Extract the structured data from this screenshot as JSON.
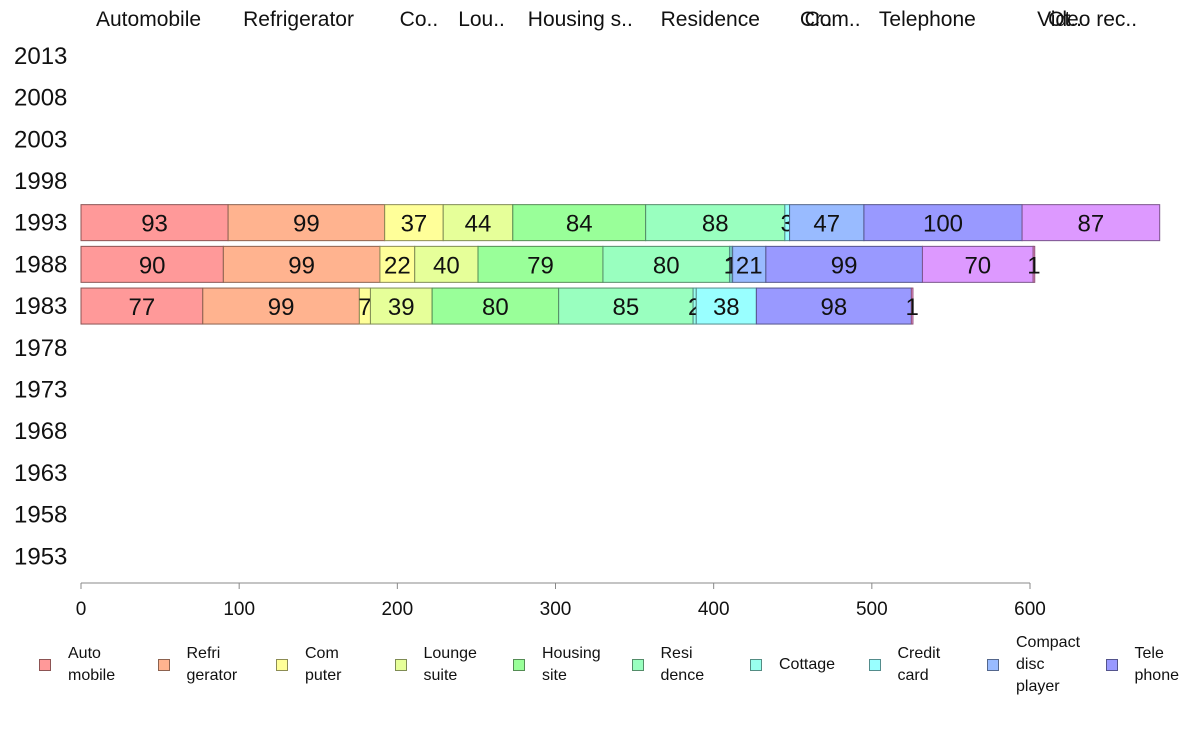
{
  "chart_data": {
    "type": "bar",
    "orientation": "horizontal",
    "stacked": true,
    "years": [
      "2013",
      "2008",
      "2003",
      "1998",
      "1993",
      "1988",
      "1983",
      "1978",
      "1973",
      "1968",
      "1963",
      "1958",
      "1953"
    ],
    "xlim": [
      0,
      600
    ],
    "xticks": [
      "0",
      "100",
      "200",
      "300",
      "400",
      "500",
      "600"
    ],
    "grid": false,
    "legend_position": "bottom",
    "top_labels": [
      {
        "text": "Automobile",
        "series_index": 0
      },
      {
        "text": "Refrigerator",
        "series_index": 1
      },
      {
        "text": "Co..",
        "series_index": 2
      },
      {
        "text": "Lou..",
        "series_index": 3
      },
      {
        "text": "Housing s..",
        "series_index": 4
      },
      {
        "text": "Residence",
        "series_index": 5
      },
      {
        "text": "Cr..",
        "series_index": 7
      },
      {
        "text": "Com..",
        "series_index": 8
      },
      {
        "text": "Telephone",
        "series_index": 9
      },
      {
        "text": "Video rec..",
        "series_index": 10
      },
      {
        "text": "Ot..",
        "series_index": 11
      }
    ],
    "series": [
      {
        "name": "Automobile",
        "legend": "Auto\nmobile",
        "color": "#ff9999",
        "values": {
          "1993": 93,
          "1988": 90,
          "1983": 77
        }
      },
      {
        "name": "Refrigerator",
        "legend": "Refri\ngerator",
        "color": "#ffb38f",
        "values": {
          "1993": 99,
          "1988": 99,
          "1983": 99
        }
      },
      {
        "name": "Computer",
        "legend": "Com\nputer",
        "color": "#ffff99",
        "values": {
          "1993": 37,
          "1988": 22,
          "1983": 7
        }
      },
      {
        "name": "Lounge suite",
        "legend": "Lounge\nsuite",
        "color": "#e6ff99",
        "values": {
          "1993": 44,
          "1988": 40,
          "1983": 39
        }
      },
      {
        "name": "Housing site",
        "legend": "Housing\nsite",
        "color": "#99ff99",
        "values": {
          "1993": 84,
          "1988": 79,
          "1983": 80
        }
      },
      {
        "name": "Residence",
        "legend": "Resi\ndence",
        "color": "#99ffbf",
        "values": {
          "1993": 88,
          "1988": 80,
          "1983": 85
        }
      },
      {
        "name": "Cottage",
        "legend": "Cottage",
        "color": "#99ffee",
        "values": {
          "1993": 0,
          "1988": 1,
          "1983": 2
        }
      },
      {
        "name": "Credit card",
        "legend": "Credit\ncard",
        "color": "#99ffff",
        "values": {
          "1993": 3,
          "1988": 1,
          "1983": 38
        }
      },
      {
        "name": "Compact disc player",
        "legend": "Compact\ndisc\nplayer",
        "color": "#99bbff",
        "values": {
          "1993": 47,
          "1988": 21,
          "1983": 0
        }
      },
      {
        "name": "Telephone",
        "legend": "Tele\nphone",
        "color": "#9999ff",
        "values": {
          "1993": 100,
          "1988": 99,
          "1983": 98
        }
      },
      {
        "name": "Video recorder",
        "legend": "",
        "color": "#dd99ff",
        "values": {
          "1993": 87,
          "1988": 70,
          "1983": 0
        }
      },
      {
        "name": "Other",
        "legend": "",
        "color": "#ff99dd",
        "values": {
          "1993": 0,
          "1988": 1,
          "1983": 1
        }
      }
    ]
  }
}
